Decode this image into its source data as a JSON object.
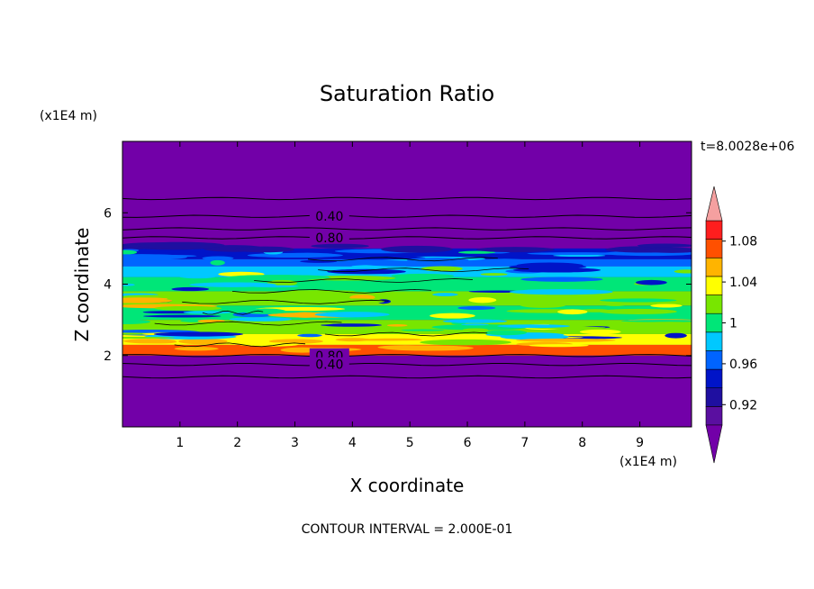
{
  "chart_data": {
    "type": "heatmap",
    "title": "Saturation Ratio",
    "xlabel": "X coordinate",
    "ylabel": "Z coordinate",
    "x_unit_label": "(x1E4 m)",
    "y_unit_label": "(x1E4 m)",
    "xlim": [
      0,
      9.9
    ],
    "ylim": [
      0,
      8
    ],
    "x_ticks": [
      1,
      2,
      3,
      4,
      5,
      6,
      7,
      8,
      9
    ],
    "y_ticks": [
      2,
      4,
      6
    ],
    "time_label": "t=8.0028e+06",
    "footer": "CONTOUR INTERVAL = 2.000E-01",
    "colorbar": {
      "levels": [
        0.9,
        0.92,
        0.94,
        0.96,
        0.98,
        1.0,
        1.02,
        1.04,
        1.06,
        1.08,
        1.1
      ],
      "colors": [
        "#5a0fa0",
        "#1f0fa0",
        "#0014c8",
        "#0064ff",
        "#00c8ff",
        "#00e678",
        "#78e600",
        "#ffff00",
        "#ffb400",
        "#ff5000",
        "#ff1e1e"
      ],
      "over_color": "#f5a0a0",
      "under_color": "#7200a8",
      "tick_values": [
        0.92,
        0.96,
        1,
        1.04,
        1.08
      ],
      "tick_labels": [
        "0.92",
        "0.96",
        "1",
        "1.04",
        "1.08"
      ]
    },
    "contour_lines": [
      {
        "z": 6.4,
        "label": ""
      },
      {
        "z": 5.9,
        "label": "0.40"
      },
      {
        "z": 5.55,
        "label": ""
      },
      {
        "z": 5.3,
        "label": "0.80"
      },
      {
        "z": 2.0,
        "label": "0.80"
      },
      {
        "z": 1.75,
        "label": "0.40"
      },
      {
        "z": 1.4,
        "label": ""
      }
    ],
    "moist_layer": {
      "z_bottom": 2.0,
      "z_top": 5.0,
      "bands": [
        {
          "z0": 2.0,
          "z1": 2.3,
          "value": 1.09
        },
        {
          "z0": 2.3,
          "z1": 2.6,
          "value": 1.05
        },
        {
          "z0": 2.6,
          "z1": 3.0,
          "value": 1.03
        },
        {
          "z0": 3.0,
          "z1": 3.4,
          "value": 1.01
        },
        {
          "z0": 3.4,
          "z1": 3.8,
          "value": 1.02
        },
        {
          "z0": 3.8,
          "z1": 4.2,
          "value": 1.0
        },
        {
          "z0": 4.2,
          "z1": 4.5,
          "value": 0.99
        },
        {
          "z0": 4.5,
          "z1": 4.7,
          "value": 0.97
        },
        {
          "z0": 4.7,
          "z1": 5.0,
          "value": 0.95
        }
      ]
    }
  }
}
